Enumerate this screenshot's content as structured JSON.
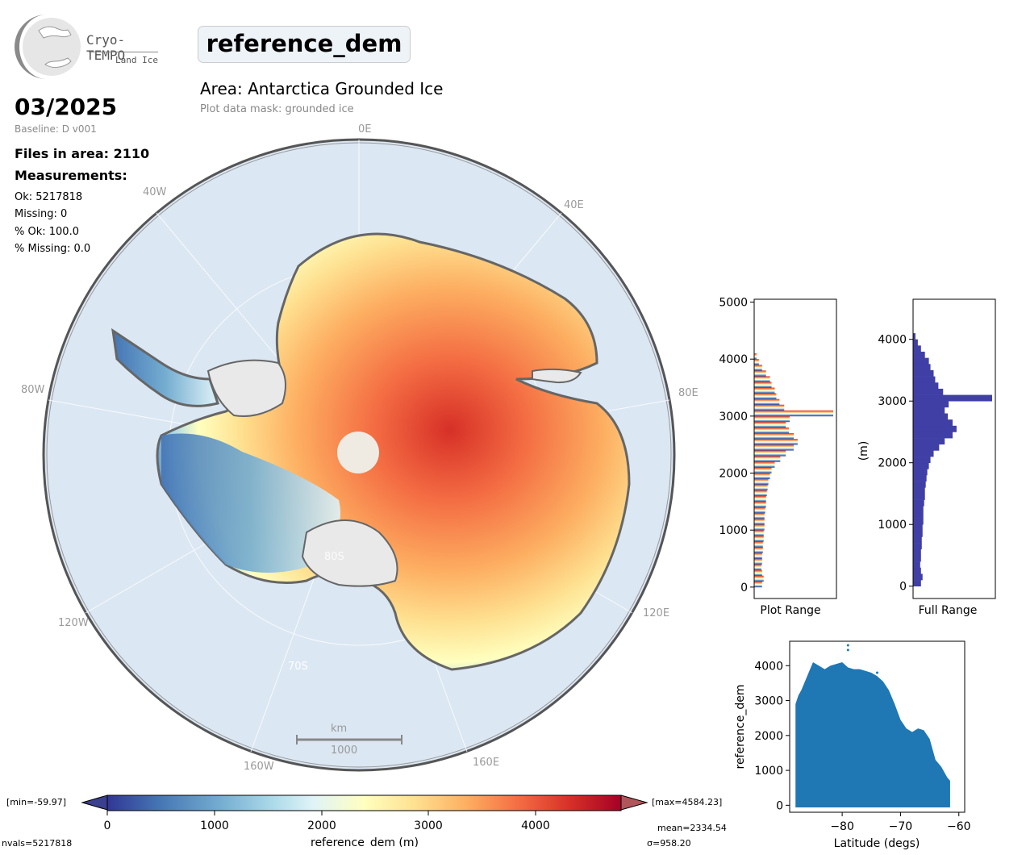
{
  "logo": {
    "line1": "Cryo-TEMPO",
    "line2": "Land Ice"
  },
  "header": {
    "parameter": "reference_dem",
    "date": "03/2025",
    "baseline": "Baseline: D v001",
    "area": "Area: Antarctica Grounded Ice",
    "mask": "Plot data mask: grounded ice"
  },
  "stats": {
    "files": "Files in area: 2110",
    "measurements": "Measurements:",
    "ok": "Ok: 5217818",
    "missing": "Missing: 0",
    "pct_ok": "% Ok: 100.0",
    "pct_missing": "% Missing: 0.0"
  },
  "map": {
    "lon_labels": [
      "0E",
      "40E",
      "80E",
      "120E",
      "160E",
      "160W",
      "120W",
      "80W",
      "40W"
    ],
    "lat_labels": [
      "80S",
      "70S"
    ],
    "scalebar_unit": "km",
    "scalebar_value": "1000"
  },
  "colorbar": {
    "min_label": "[min=-59.97]",
    "max_label": "[max=4584.23]",
    "ticks": [
      "0",
      "1000",
      "2000",
      "3000",
      "4000"
    ],
    "label": "reference_dem (m)",
    "nvals": "nvals=5217818",
    "mean": "mean=2334.54",
    "sigma": "σ=958.20"
  },
  "chart_data": [
    {
      "type": "bar",
      "orientation": "horizontal",
      "title": "",
      "xlabel": "Plot Range",
      "ylabel": "",
      "ylim": [
        -200,
        5050
      ],
      "yticks": [
        "0",
        "1000",
        "2000",
        "3000",
        "4000",
        "5000"
      ],
      "bins": [
        0,
        100,
        200,
        300,
        400,
        500,
        600,
        700,
        800,
        900,
        1000,
        1100,
        1200,
        1300,
        1400,
        1500,
        1600,
        1700,
        1800,
        1900,
        2000,
        2100,
        2200,
        2300,
        2400,
        2500,
        2600,
        2700,
        2800,
        2900,
        3000,
        3100,
        3200,
        3300,
        3400,
        3500,
        3600,
        3700,
        3800,
        3900,
        4000
      ],
      "values": [
        0.1,
        0.12,
        0.1,
        0.09,
        0.1,
        0.1,
        0.11,
        0.11,
        0.12,
        0.12,
        0.13,
        0.13,
        0.13,
        0.14,
        0.15,
        0.15,
        0.16,
        0.17,
        0.18,
        0.2,
        0.22,
        0.26,
        0.33,
        0.4,
        0.5,
        0.55,
        0.5,
        0.44,
        0.4,
        0.45,
        1.0,
        0.38,
        0.32,
        0.28,
        0.26,
        0.22,
        0.2,
        0.15,
        0.1,
        0.06,
        0.03
      ]
    },
    {
      "type": "bar",
      "orientation": "horizontal",
      "title": "",
      "xlabel": "Full Range",
      "ylabel": "(m)",
      "ylim": [
        -200,
        4650
      ],
      "yticks": [
        "0",
        "1000",
        "2000",
        "3000",
        "4000"
      ],
      "bins": [
        0,
        100,
        200,
        300,
        400,
        500,
        600,
        700,
        800,
        900,
        1000,
        1100,
        1200,
        1300,
        1400,
        1500,
        1600,
        1700,
        1800,
        1900,
        2000,
        2100,
        2200,
        2300,
        2400,
        2500,
        2600,
        2700,
        2800,
        2900,
        3000,
        3100,
        3200,
        3300,
        3400,
        3500,
        3600,
        3700,
        3800,
        3900,
        4000
      ],
      "values": [
        0.1,
        0.12,
        0.1,
        0.09,
        0.1,
        0.1,
        0.11,
        0.11,
        0.12,
        0.12,
        0.13,
        0.13,
        0.13,
        0.14,
        0.15,
        0.15,
        0.16,
        0.17,
        0.18,
        0.2,
        0.22,
        0.26,
        0.33,
        0.4,
        0.5,
        0.55,
        0.5,
        0.44,
        0.4,
        0.45,
        1.0,
        0.38,
        0.32,
        0.28,
        0.26,
        0.22,
        0.2,
        0.15,
        0.1,
        0.06,
        0.03
      ],
      "color": "#3f3fa6"
    },
    {
      "type": "scatter",
      "title": "",
      "xlabel": "Latitude (degs)",
      "ylabel": "reference_dem",
      "xlim": [
        -89,
        -59
      ],
      "ylim": [
        -200,
        4700
      ],
      "xticks": [
        "−80",
        "−70",
        "−60"
      ],
      "yticks": [
        "0",
        "1000",
        "2000",
        "3000",
        "4000"
      ],
      "color": "#1f77b4",
      "envelope_top": [
        [
          -88,
          2900
        ],
        [
          -87.5,
          3150
        ],
        [
          -87,
          3300
        ],
        [
          -86,
          3700
        ],
        [
          -85,
          4100
        ],
        [
          -84,
          4000
        ],
        [
          -83,
          3900
        ],
        [
          -82,
          4000
        ],
        [
          -81,
          4050
        ],
        [
          -80,
          4100
        ],
        [
          -79,
          3950
        ],
        [
          -78,
          3900
        ],
        [
          -77,
          3900
        ],
        [
          -76,
          3850
        ],
        [
          -75,
          3800
        ],
        [
          -74,
          3700
        ],
        [
          -73,
          3550
        ],
        [
          -72,
          3300
        ],
        [
          -71,
          2900
        ],
        [
          -70,
          2450
        ],
        [
          -69,
          2200
        ],
        [
          -68,
          2100
        ],
        [
          -67,
          2200
        ],
        [
          -66,
          2150
        ],
        [
          -65,
          1900
        ],
        [
          -64,
          1300
        ],
        [
          -63,
          1100
        ],
        [
          -62,
          800
        ],
        [
          -61.5,
          700
        ]
      ],
      "outliers": [
        [
          -79,
          4584
        ],
        [
          -79,
          4450
        ],
        [
          -74,
          3800
        ]
      ]
    }
  ],
  "colors": {
    "ocean": "#dbe7f3",
    "ice_shelf": "#e9e9e9",
    "histogram_full": "#3f3fa6",
    "scatter": "#1f77b4"
  }
}
